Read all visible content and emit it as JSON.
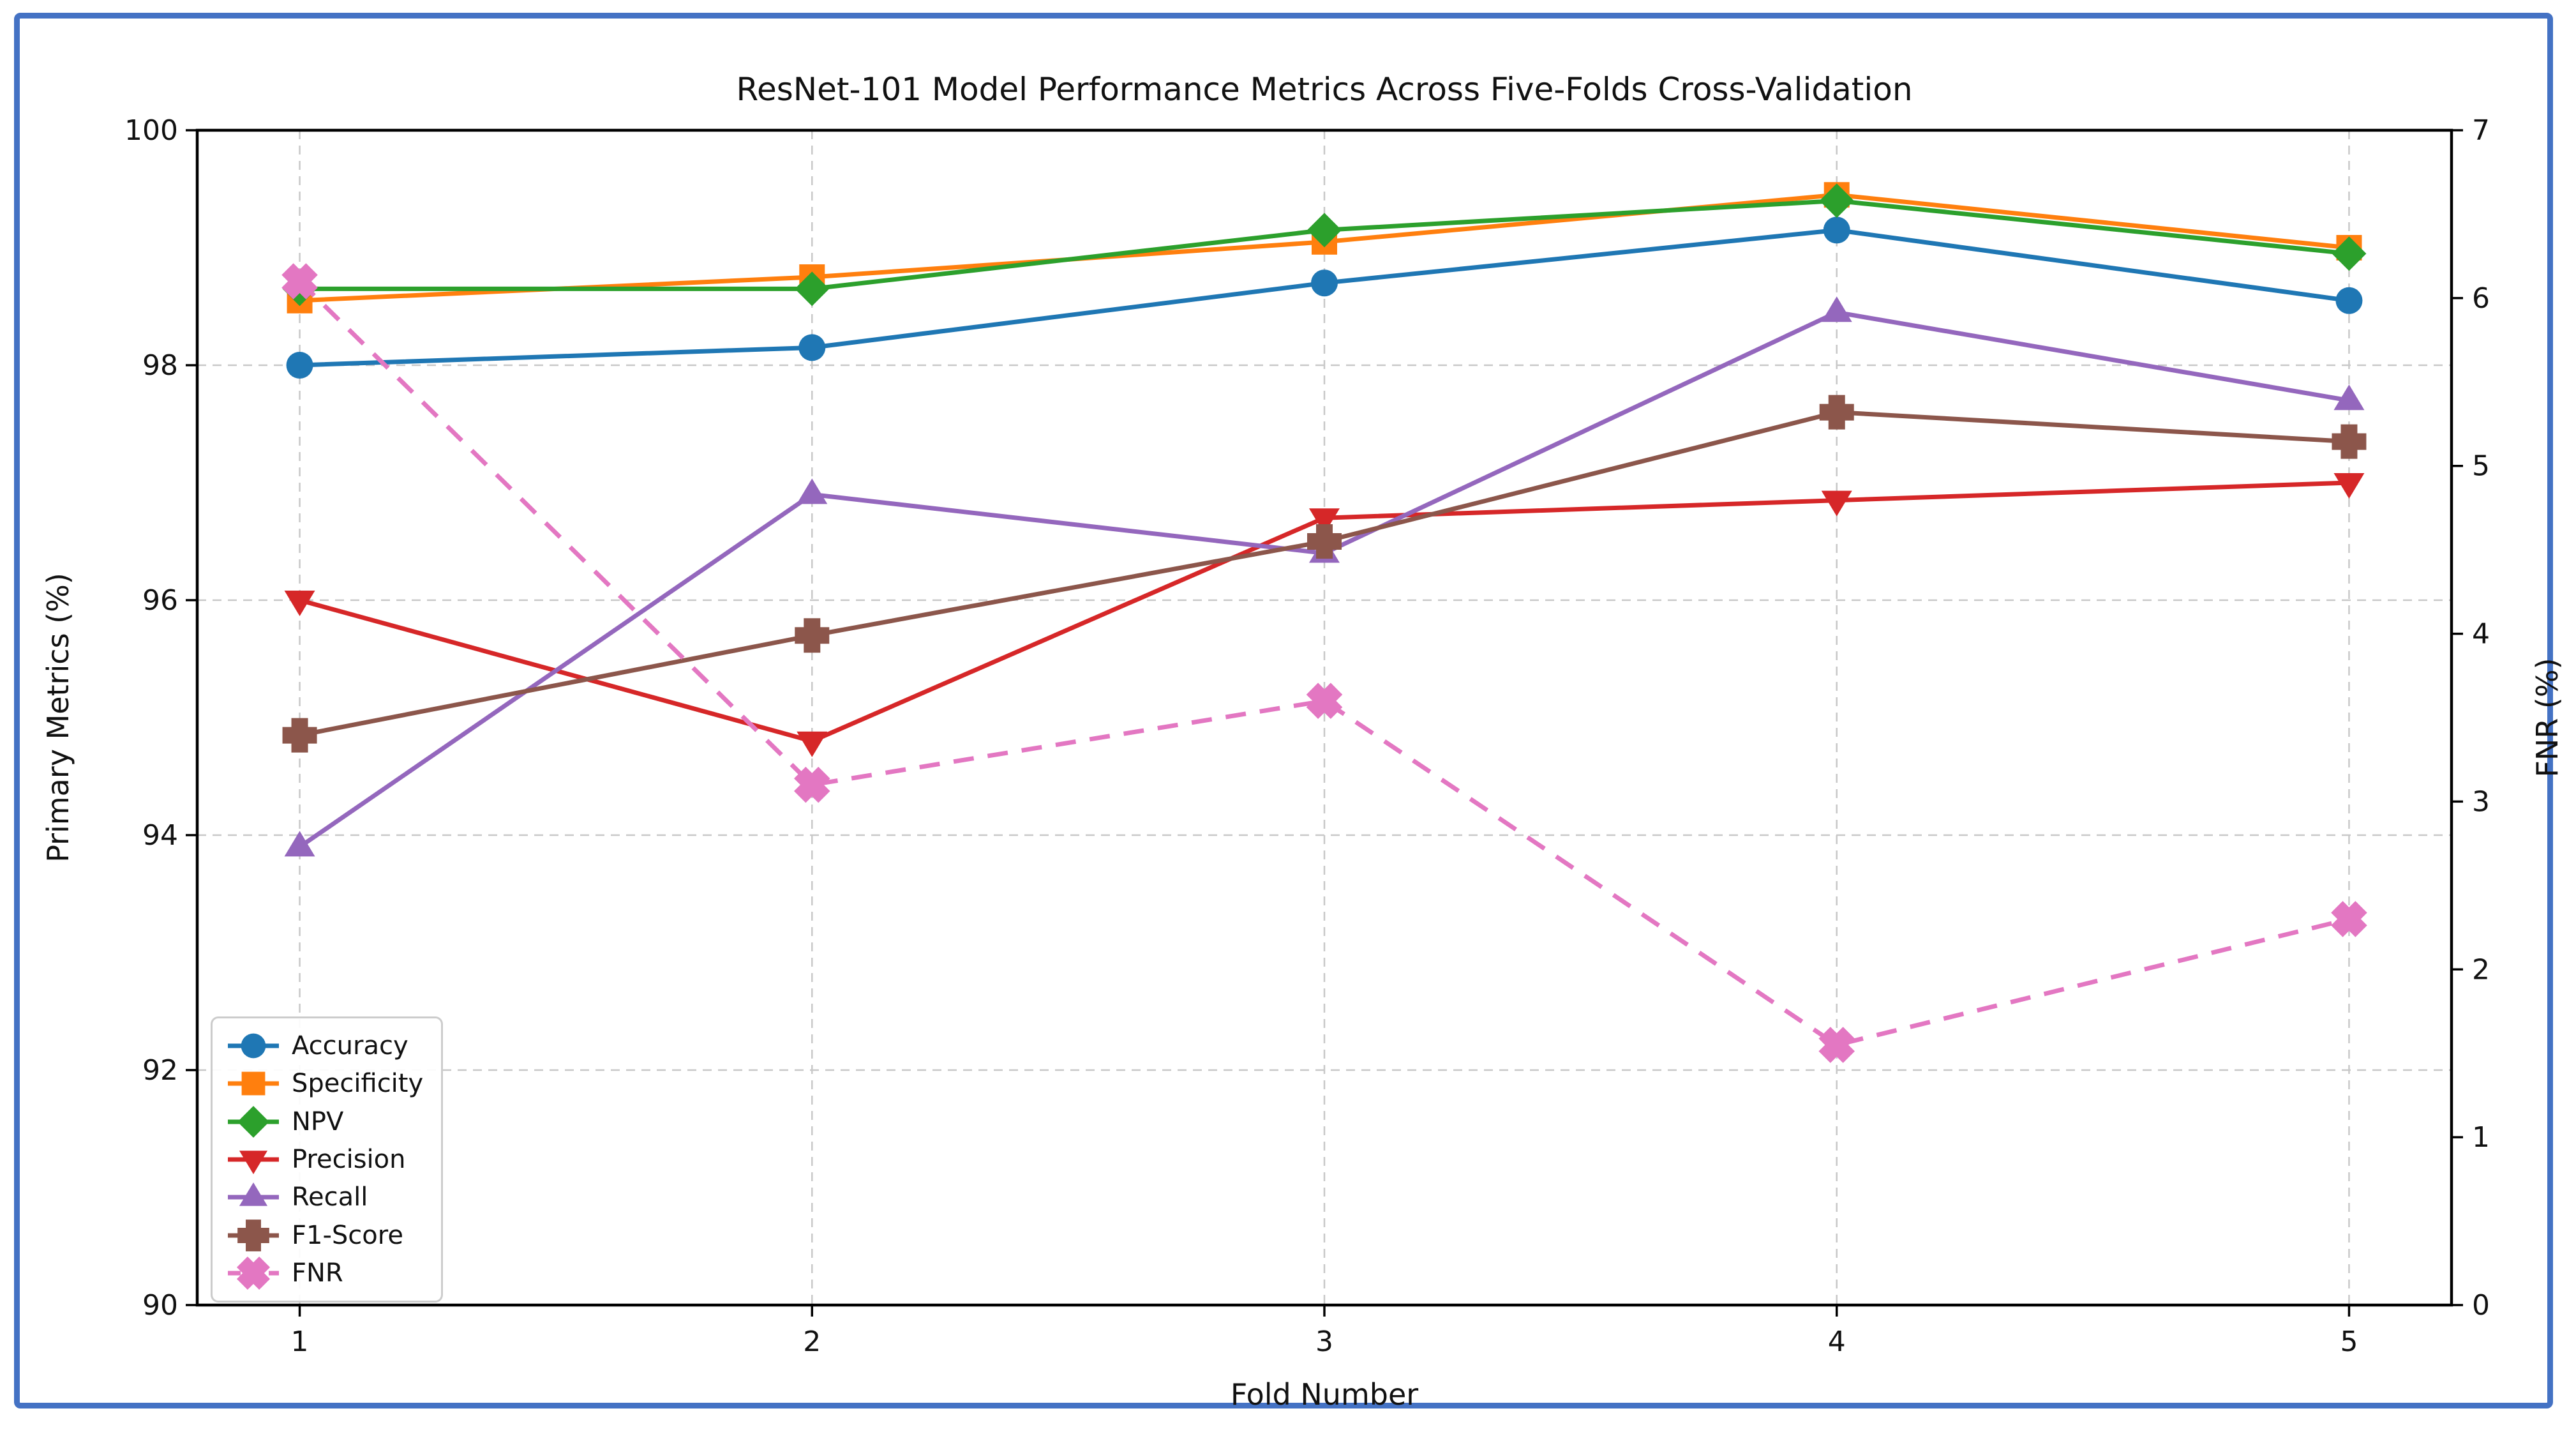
{
  "figure": {
    "title": "ResNet-101 Model Performance Metrics Across Five-Folds Cross-Validation",
    "xlabel": "Fold Number",
    "ylabel_left": "Primary Metrics (%)",
    "ylabel_right": "FNR (%)"
  },
  "chart_data": {
    "type": "line",
    "x": [
      1,
      2,
      3,
      4,
      5
    ],
    "x_tick_labels": [
      "1",
      "2",
      "3",
      "4",
      "5"
    ],
    "xlabel": "Fold Number",
    "title": "ResNet-101 Model Performance Metrics Across Five-Folds Cross-Validation",
    "xlim": [
      0.8,
      5.2
    ],
    "grid": "dashed",
    "legend_position": "lower-left",
    "left_axis": {
      "label": "Primary Metrics (%)",
      "range": [
        90,
        100
      ],
      "ticks": [
        90,
        92,
        94,
        96,
        98,
        100
      ],
      "gridline_ticks": [
        92,
        94,
        96,
        98
      ]
    },
    "right_axis": {
      "label": "FNR (%)",
      "range": [
        0,
        7
      ],
      "ticks": [
        0,
        1,
        2,
        3,
        4,
        5,
        6,
        7
      ]
    },
    "series": [
      {
        "name": "Accuracy",
        "color": "#1f77b4",
        "marker": "circle",
        "linestyle": "solid",
        "axis": "left",
        "values": [
          98.0,
          98.15,
          98.7,
          99.15,
          98.55
        ]
      },
      {
        "name": "Specificity",
        "color": "#ff7f0e",
        "marker": "square",
        "linestyle": "solid",
        "axis": "left",
        "values": [
          98.55,
          98.75,
          99.05,
          99.45,
          99.0
        ]
      },
      {
        "name": "NPV",
        "color": "#2ca02c",
        "marker": "diamond",
        "linestyle": "solid",
        "axis": "left",
        "values": [
          98.65,
          98.65,
          99.15,
          99.4,
          98.95
        ]
      },
      {
        "name": "Precision",
        "color": "#d62728",
        "marker": "triangle-down",
        "linestyle": "solid",
        "axis": "left",
        "values": [
          96.0,
          94.8,
          96.7,
          96.85,
          97.0
        ]
      },
      {
        "name": "Recall",
        "color": "#9467bd",
        "marker": "triangle-up",
        "linestyle": "solid",
        "axis": "left",
        "values": [
          93.9,
          96.9,
          96.4,
          98.45,
          97.7
        ]
      },
      {
        "name": "F1-Score",
        "color": "#8c564b",
        "marker": "plus",
        "linestyle": "solid",
        "axis": "left",
        "values": [
          94.85,
          95.7,
          96.5,
          97.6,
          97.35
        ]
      },
      {
        "name": "FNR",
        "color": "#e377c2",
        "marker": "x",
        "linestyle": "dashed",
        "axis": "right",
        "values": [
          6.1,
          3.1,
          3.6,
          1.55,
          2.3
        ]
      }
    ]
  },
  "colors": {
    "frame_border": "#4472c4",
    "background": "#ffffff",
    "grid": "#c8c8c8",
    "axis": "#000000",
    "tick_text": "#111111",
    "legend_border": "#cccccc"
  }
}
